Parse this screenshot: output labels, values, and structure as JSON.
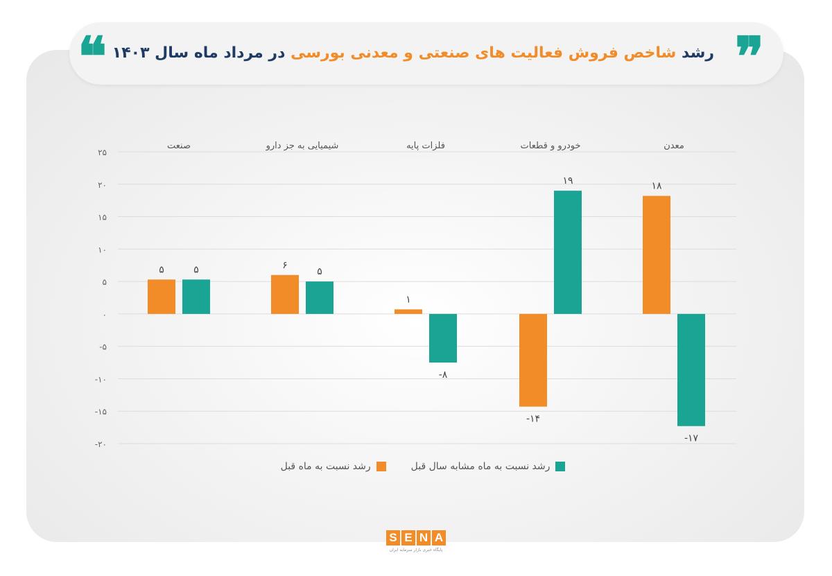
{
  "title": {
    "part1": "رشد",
    "part2": "شاخص فروش فعالیت های صنعتی و معدنی بورسی",
    "part3": "در مرداد ماه سال ۱۴۰۳"
  },
  "colors": {
    "orange": "#f28c28",
    "teal": "#1aa493",
    "navy": "#1f3b64"
  },
  "icons": {
    "quote_left": "open-quote-icon",
    "quote_right": "close-quote-icon"
  },
  "logo": {
    "letters": [
      "S",
      "E",
      "N",
      "A"
    ],
    "subtitle": "پایگاه خبری بازار سرمایه ایران"
  },
  "chart_data": {
    "type": "bar",
    "categories": [
      "صنعت",
      "شیمیایی به جز دارو",
      "فلزات پایه",
      "خودرو و قطعات",
      "معدن"
    ],
    "series": [
      {
        "name": "رشد نسبت به ماه قبل",
        "values": [
          5.3,
          6,
          0.7,
          -14.3,
          18.2
        ],
        "labels": [
          "۵",
          "۶",
          "۱",
          "-۱۴",
          "۱۸"
        ],
        "color": "#f28c28"
      },
      {
        "name": "رشد نسبت به ماه مشابه سال قبل",
        "values": [
          5.3,
          5,
          -7.5,
          19,
          -17.3
        ],
        "labels": [
          "۵",
          "۵",
          "-۸",
          "۱۹",
          "-۱۷"
        ],
        "color": "#1aa493"
      }
    ],
    "yticks": [
      25,
      20,
      15,
      10,
      5,
      0,
      -5,
      -10,
      -15,
      -20
    ],
    "ytick_labels": [
      "۲۵",
      "۲۰",
      "۱۵",
      "۱۰",
      "۵",
      "۰",
      "-۵",
      "-۱۰",
      "-۱۵",
      "-۲۰"
    ],
    "ylim": [
      -20,
      25
    ],
    "grid": true,
    "legend_position": "bottom",
    "title": "",
    "xlabel": "",
    "ylabel": ""
  }
}
